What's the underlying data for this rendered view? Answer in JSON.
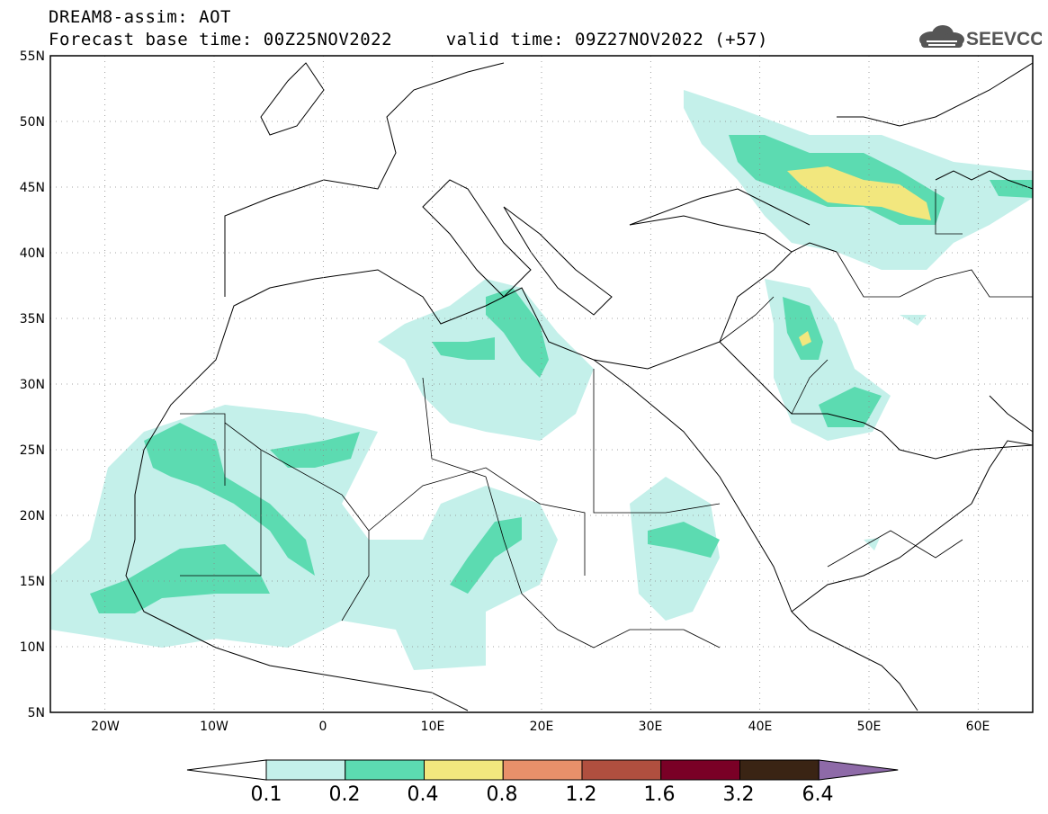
{
  "header": {
    "line1": "DREAM8-assim: AOT",
    "line2": "Forecast base time: 00Z25NOV2022     valid time: 09Z27NOV2022 (+57)"
  },
  "logo": {
    "text": "SEEVCCC",
    "icon": "cloud-icon"
  },
  "map": {
    "lon_range": [
      -25,
      65
    ],
    "lat_range": [
      5,
      55
    ],
    "lat_ticks": [
      "55N",
      "50N",
      "45N",
      "40N",
      "35N",
      "30N",
      "25N",
      "20N",
      "15N",
      "10N",
      "5N"
    ],
    "lon_ticks": [
      "20W",
      "10W",
      "0",
      "10E",
      "20E",
      "30E",
      "40E",
      "50E",
      "60E"
    ],
    "grid": "dotted"
  },
  "colorbar": {
    "labels": [
      "0.1",
      "0.2",
      "0.4",
      "0.8",
      "1.2",
      "1.6",
      "3.2",
      "6.4"
    ],
    "colors": [
      "#ffffff",
      "#c4f0ea",
      "#5cdbb1",
      "#f2e77e",
      "#e8906a",
      "#b04f3f",
      "#7a0026",
      "#3a2414",
      "#8e6aa8"
    ]
  }
}
